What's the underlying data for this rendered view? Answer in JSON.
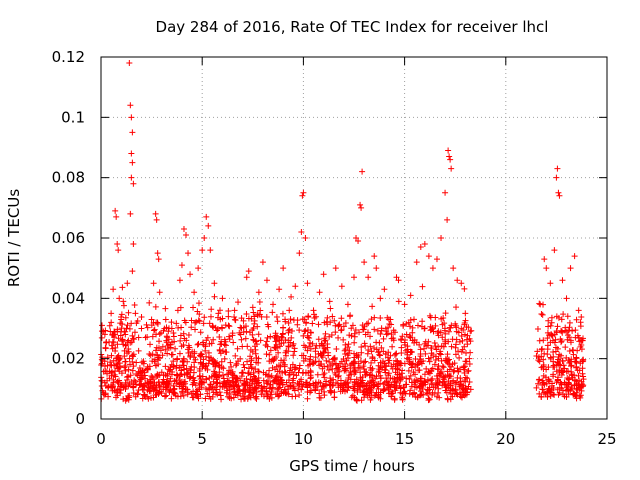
{
  "chart_data": {
    "type": "scatter",
    "title": "Day 284 of 2016, Rate Of TEC Index for receiver lhcl",
    "xlabel": "GPS time / hours",
    "ylabel": "ROTI / TECUs",
    "xlim": [
      0,
      25
    ],
    "ylim": [
      0,
      0.12
    ],
    "xticks": [
      0,
      5,
      10,
      15,
      20,
      25
    ],
    "xtick_labels": [
      "0",
      "5",
      "10",
      "15",
      "20",
      "25"
    ],
    "yticks": [
      0,
      0.02,
      0.04,
      0.06,
      0.08,
      0.1,
      0.12
    ],
    "ytick_labels": [
      "0",
      "0.02",
      "0.04",
      "0.06",
      "0.08",
      "0.1",
      "0.12"
    ],
    "grid": true,
    "marker": "+",
    "color": "#ff0000",
    "data_gap_hours": [
      18.3,
      21.5
    ],
    "series": [
      {
        "name": "ROTI",
        "points": [
          [
            0.3,
            0.015
          ],
          [
            0.5,
            0.035
          ],
          [
            0.6,
            0.043
          ],
          [
            0.7,
            0.069
          ],
          [
            0.75,
            0.067
          ],
          [
            0.8,
            0.058
          ],
          [
            0.85,
            0.056
          ],
          [
            0.9,
            0.04
          ],
          [
            1.0,
            0.033
          ],
          [
            1.1,
            0.039
          ],
          [
            1.2,
            0.028
          ],
          [
            1.3,
            0.045
          ],
          [
            1.4,
            0.118
          ],
          [
            1.45,
            0.104
          ],
          [
            1.5,
            0.1
          ],
          [
            1.55,
            0.095
          ],
          [
            1.5,
            0.088
          ],
          [
            1.55,
            0.085
          ],
          [
            1.5,
            0.08
          ],
          [
            1.6,
            0.078
          ],
          [
            1.45,
            0.068
          ],
          [
            1.6,
            0.058
          ],
          [
            1.55,
            0.049
          ],
          [
            1.7,
            0.035
          ],
          [
            2.0,
            0.03
          ],
          [
            2.2,
            0.027
          ],
          [
            2.5,
            0.033
          ],
          [
            2.6,
            0.045
          ],
          [
            2.7,
            0.068
          ],
          [
            2.75,
            0.066
          ],
          [
            2.8,
            0.055
          ],
          [
            2.85,
            0.053
          ],
          [
            2.9,
            0.042
          ],
          [
            3.2,
            0.033
          ],
          [
            3.5,
            0.03
          ],
          [
            3.8,
            0.036
          ],
          [
            3.9,
            0.046
          ],
          [
            4.0,
            0.051
          ],
          [
            4.1,
            0.063
          ],
          [
            4.2,
            0.061
          ],
          [
            4.3,
            0.055
          ],
          [
            4.4,
            0.048
          ],
          [
            4.6,
            0.042
          ],
          [
            4.8,
            0.05
          ],
          [
            5.0,
            0.056
          ],
          [
            5.1,
            0.06
          ],
          [
            5.2,
            0.067
          ],
          [
            5.3,
            0.064
          ],
          [
            5.4,
            0.056
          ],
          [
            5.6,
            0.045
          ],
          [
            5.8,
            0.035
          ],
          [
            6.0,
            0.04
          ],
          [
            6.3,
            0.031
          ],
          [
            6.6,
            0.036
          ],
          [
            6.9,
            0.028
          ],
          [
            7.2,
            0.047
          ],
          [
            7.3,
            0.049
          ],
          [
            7.5,
            0.037
          ],
          [
            7.8,
            0.042
          ],
          [
            8.0,
            0.052
          ],
          [
            8.2,
            0.046
          ],
          [
            8.5,
            0.038
          ],
          [
            8.8,
            0.043
          ],
          [
            9.0,
            0.05
          ],
          [
            9.3,
            0.036
          ],
          [
            9.6,
            0.044
          ],
          [
            9.8,
            0.055
          ],
          [
            9.9,
            0.062
          ],
          [
            9.95,
            0.074
          ],
          [
            10.0,
            0.075
          ],
          [
            10.1,
            0.06
          ],
          [
            10.2,
            0.045
          ],
          [
            10.5,
            0.036
          ],
          [
            10.8,
            0.042
          ],
          [
            11.0,
            0.048
          ],
          [
            11.3,
            0.039
          ],
          [
            11.6,
            0.05
          ],
          [
            11.9,
            0.044
          ],
          [
            12.2,
            0.038
          ],
          [
            12.5,
            0.047
          ],
          [
            12.6,
            0.06
          ],
          [
            12.7,
            0.059
          ],
          [
            12.8,
            0.071
          ],
          [
            12.85,
            0.07
          ],
          [
            12.9,
            0.082
          ],
          [
            13.0,
            0.052
          ],
          [
            13.2,
            0.047
          ],
          [
            13.5,
            0.054
          ],
          [
            13.6,
            0.05
          ],
          [
            13.8,
            0.04
          ],
          [
            14.0,
            0.043
          ],
          [
            14.3,
            0.033
          ],
          [
            14.6,
            0.047
          ],
          [
            14.7,
            0.046
          ],
          [
            15.0,
            0.038
          ],
          [
            15.3,
            0.041
          ],
          [
            15.6,
            0.052
          ],
          [
            15.8,
            0.057
          ],
          [
            16.0,
            0.058
          ],
          [
            16.2,
            0.054
          ],
          [
            16.4,
            0.05
          ],
          [
            16.6,
            0.053
          ],
          [
            16.8,
            0.06
          ],
          [
            17.0,
            0.075
          ],
          [
            17.1,
            0.066
          ],
          [
            17.15,
            0.089
          ],
          [
            17.2,
            0.087
          ],
          [
            17.25,
            0.086
          ],
          [
            17.3,
            0.083
          ],
          [
            17.4,
            0.05
          ],
          [
            17.6,
            0.046
          ],
          [
            17.8,
            0.045
          ],
          [
            18.0,
            0.035
          ],
          [
            18.2,
            0.02
          ],
          [
            21.7,
            0.038
          ],
          [
            21.9,
            0.053
          ],
          [
            22.0,
            0.05
          ],
          [
            22.2,
            0.045
          ],
          [
            22.4,
            0.056
          ],
          [
            22.5,
            0.08
          ],
          [
            22.55,
            0.083
          ],
          [
            22.6,
            0.075
          ],
          [
            22.65,
            0.074
          ],
          [
            22.8,
            0.046
          ],
          [
            23.0,
            0.04
          ],
          [
            23.2,
            0.05
          ],
          [
            23.4,
            0.054
          ],
          [
            23.6,
            0.036
          ],
          [
            23.8,
            0.026
          ]
        ]
      }
    ]
  }
}
